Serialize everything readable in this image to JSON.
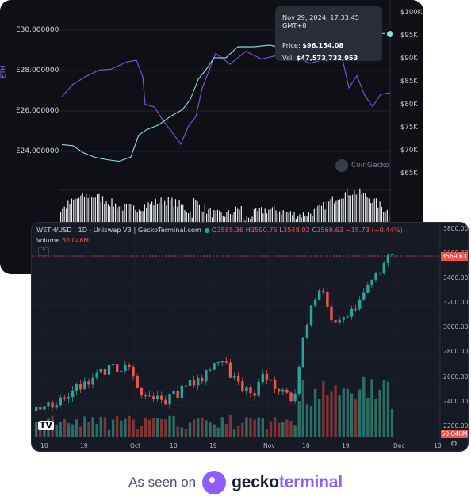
{
  "back_chart": {
    "axis_left_label": "ETH",
    "left_ticks": [
      "Ξ30.000000",
      "Ξ28.000000",
      "Ξ26.000000",
      "Ξ24.000000"
    ],
    "right_ticks": [
      "$100K",
      "$95K",
      "$90K",
      "$85K",
      "$80K",
      "$75K",
      "$70K",
      "$65K"
    ],
    "tooltip": {
      "datetime": "Nov 29, 2024, 17:33:45 GMT+8",
      "price_label": "Price:",
      "price": "$96,154.08",
      "vol_label": "Vol:",
      "vol": "$47,573,732,953"
    },
    "watermark": "CoinGecko",
    "colors": {
      "purple_line": "#7b4fd6",
      "teal_line": "#8ee0d0",
      "bg": "#0e1015"
    }
  },
  "front_chart": {
    "title": "WETH/USD · 1D · Uniswap V3 | GeckoTerminal.com",
    "ohlc": {
      "o_label": "O",
      "o": "3585.36",
      "h_label": "H",
      "h": "3590.75",
      "l_label": "L",
      "l": "3548.02",
      "c_label": "C",
      "c": "3569.63",
      "chg": "−15.73 (−0.44%)"
    },
    "volume_label": "Volume",
    "volume_value": "50.046M",
    "price_ticks": [
      "3800.00",
      "3600.00",
      "3400.00",
      "3200.00",
      "3000.00",
      "2800.00",
      "2600.00",
      "2400.00",
      "2200.00"
    ],
    "last_price": "3569.63",
    "last_volume": "50.046M",
    "x_ticks": [
      "10",
      "19",
      "Oct",
      "10",
      "19",
      "Nov",
      "10",
      "19",
      "Dec",
      "10"
    ],
    "colors": {
      "up": "#26a69a",
      "down": "#ef5350",
      "bg": "#161a25"
    }
  },
  "chart_data": {
    "type": "candlestick",
    "title": "WETH/USD · 1D · Uniswap V3 | GeckoTerminal.com",
    "ylim": [
      2150,
      3830
    ],
    "last_close": 3569.63
  },
  "footer": {
    "prefix": "As seen on",
    "brand_a": "gecko",
    "brand_b": "terminal"
  }
}
